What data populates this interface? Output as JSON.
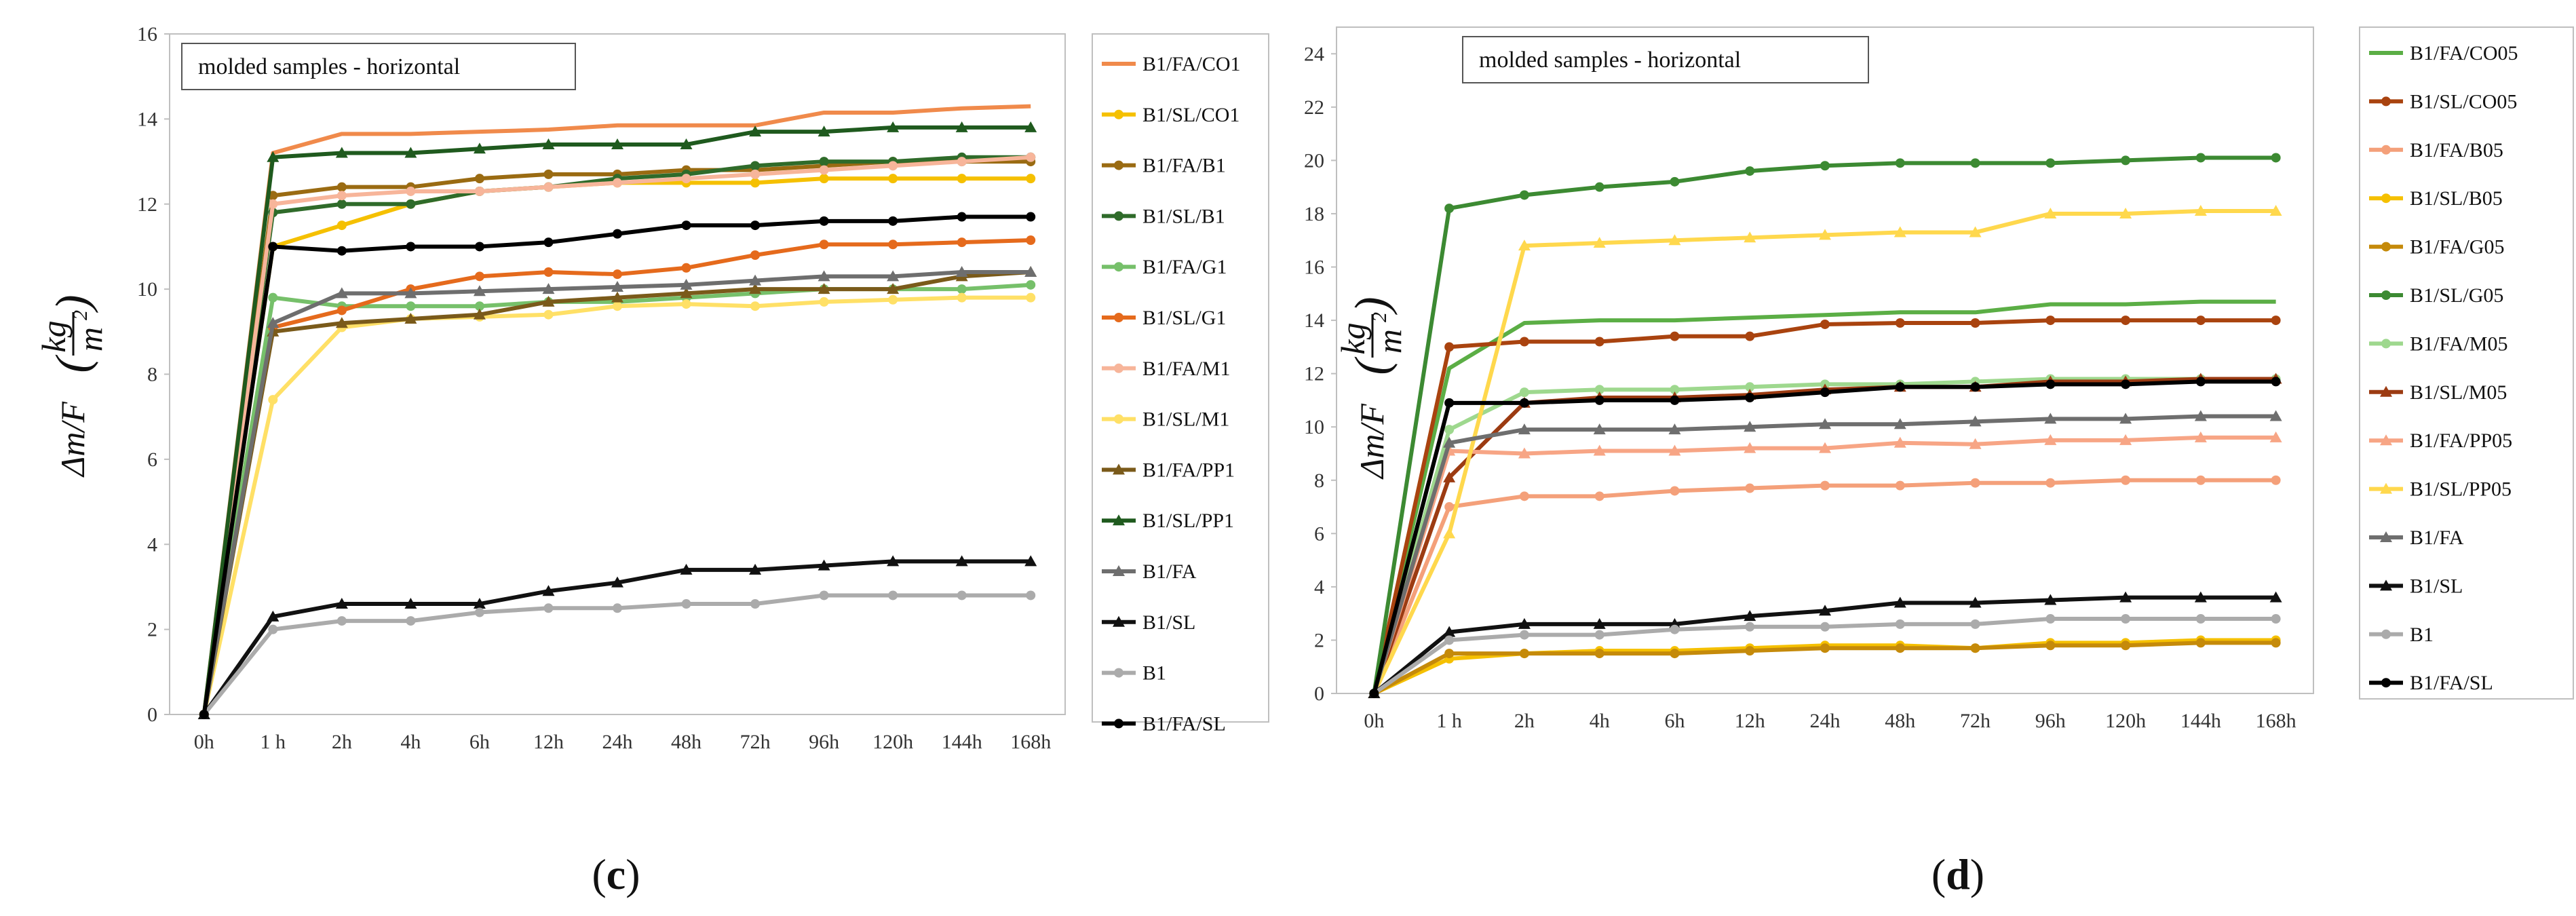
{
  "chart_data": [
    {
      "type": "line",
      "panel_label_pre": "(",
      "panel_label": "c",
      "panel_label_post": ")",
      "inset_label": "molded samples - horizontal",
      "ylabel": "Δm/F",
      "yunit_numerator": "kg",
      "yunit_denominator": "m",
      "yunit_exponent": "2",
      "ylim": [
        0,
        16
      ],
      "yticks": [
        0,
        2,
        4,
        6,
        8,
        10,
        12,
        14,
        16
      ],
      "categories": [
        "0h",
        "1 h",
        "2h",
        "4h",
        "6h",
        "12h",
        "24h",
        "48h",
        "72h",
        "96h",
        "120h",
        "144h",
        "168h"
      ],
      "series": [
        {
          "name": "B1/FA/CO1",
          "color": "#F08A4B",
          "marker": "line",
          "values": [
            0,
            13.2,
            13.65,
            13.65,
            13.7,
            13.75,
            13.85,
            13.85,
            13.85,
            14.15,
            14.15,
            14.25,
            14.3
          ]
        },
        {
          "name": "B1/SL/CO1",
          "color": "#F5C000",
          "marker": "circle",
          "values": [
            0,
            11.0,
            11.5,
            12.0,
            12.3,
            12.4,
            12.5,
            12.5,
            12.5,
            12.6,
            12.6,
            12.6,
            12.6
          ]
        },
        {
          "name": "B1/FA/B1",
          "color": "#9A6B12",
          "marker": "circle",
          "values": [
            0,
            12.2,
            12.4,
            12.4,
            12.6,
            12.7,
            12.7,
            12.8,
            12.8,
            12.9,
            13.0,
            13.0,
            13.0
          ]
        },
        {
          "name": "B1/SL/B1",
          "color": "#2F6B2A",
          "marker": "circle",
          "values": [
            0,
            11.8,
            12.0,
            12.0,
            12.3,
            12.4,
            12.6,
            12.7,
            12.9,
            13.0,
            13.0,
            13.1,
            13.1
          ]
        },
        {
          "name": "B1/FA/G1",
          "color": "#76C06A",
          "marker": "circle",
          "values": [
            0,
            9.8,
            9.6,
            9.6,
            9.6,
            9.7,
            9.7,
            9.8,
            9.9,
            10.0,
            10.0,
            10.0,
            10.1
          ]
        },
        {
          "name": "B1/SL/G1",
          "color": "#E56A1C",
          "marker": "circle",
          "values": [
            0,
            9.1,
            9.5,
            10.0,
            10.3,
            10.4,
            10.35,
            10.5,
            10.8,
            11.05,
            11.05,
            11.1,
            11.15
          ]
        },
        {
          "name": "B1/FA/M1",
          "color": "#F7B59A",
          "marker": "circle",
          "values": [
            0,
            12.0,
            12.2,
            12.3,
            12.3,
            12.4,
            12.5,
            12.6,
            12.7,
            12.8,
            12.9,
            13.0,
            13.1
          ]
        },
        {
          "name": "B1/SL/M1",
          "color": "#FFE066",
          "marker": "circle",
          "values": [
            0,
            7.4,
            9.1,
            9.3,
            9.35,
            9.4,
            9.6,
            9.65,
            9.6,
            9.7,
            9.75,
            9.8,
            9.8
          ]
        },
        {
          "name": "B1/FA/PP1",
          "color": "#7A5A1A",
          "marker": "triangle",
          "values": [
            0,
            9.0,
            9.2,
            9.3,
            9.4,
            9.7,
            9.8,
            9.9,
            10.0,
            10.0,
            10.0,
            10.3,
            10.4
          ]
        },
        {
          "name": "B1/SL/PP1",
          "color": "#1F5A1E",
          "marker": "triangle",
          "values": [
            0,
            13.1,
            13.2,
            13.2,
            13.3,
            13.4,
            13.4,
            13.4,
            13.7,
            13.7,
            13.8,
            13.8,
            13.8
          ]
        },
        {
          "name": "B1/FA",
          "color": "#6E6E6E",
          "marker": "triangle",
          "values": [
            0,
            9.2,
            9.9,
            9.9,
            9.95,
            10.0,
            10.05,
            10.1,
            10.2,
            10.3,
            10.3,
            10.4,
            10.4
          ]
        },
        {
          "name": "B1/SL",
          "color": "#111111",
          "marker": "triangle",
          "values": [
            0,
            2.3,
            2.6,
            2.6,
            2.6,
            2.9,
            3.1,
            3.4,
            3.4,
            3.5,
            3.6,
            3.6,
            3.6
          ]
        },
        {
          "name": "B1",
          "color": "#ABABAB",
          "marker": "circle",
          "values": [
            0,
            2.0,
            2.2,
            2.2,
            2.4,
            2.5,
            2.5,
            2.6,
            2.6,
            2.8,
            2.8,
            2.8,
            2.8
          ]
        },
        {
          "name": "B1/FA/SL",
          "color": "#000000",
          "marker": "circle",
          "values": [
            0,
            11.0,
            10.9,
            11.0,
            11.0,
            11.1,
            11.3,
            11.5,
            11.5,
            11.6,
            11.6,
            11.7,
            11.7
          ]
        }
      ]
    },
    {
      "type": "line",
      "panel_label_pre": "(",
      "panel_label": "d",
      "panel_label_post": ")",
      "inset_label": "molded samples - horizontal",
      "ylabel": "Δm/F",
      "yunit_numerator": "kg",
      "yunit_denominator": "m",
      "yunit_exponent": "2",
      "ylim": [
        0,
        25
      ],
      "yticks": [
        0,
        2,
        4,
        6,
        8,
        10,
        12,
        14,
        16,
        18,
        20,
        22,
        24
      ],
      "categories": [
        "0h",
        "1 h",
        "2h",
        "4h",
        "6h",
        "12h",
        "24h",
        "48h",
        "72h",
        "96h",
        "120h",
        "144h",
        "168h"
      ],
      "series": [
        {
          "name": "B1/FA/CO05",
          "color": "#5BAE45",
          "marker": "line",
          "values": [
            0,
            12.2,
            13.9,
            14.0,
            14.0,
            14.1,
            14.2,
            14.3,
            14.3,
            14.6,
            14.6,
            14.7,
            14.7
          ]
        },
        {
          "name": "B1/SL/CO05",
          "color": "#A9430F",
          "marker": "circle",
          "values": [
            0,
            13.0,
            13.2,
            13.2,
            13.4,
            13.4,
            13.85,
            13.9,
            13.9,
            14.0,
            14.0,
            14.0,
            14.0
          ]
        },
        {
          "name": "B1/FA/B05",
          "color": "#F4A07A",
          "marker": "circle",
          "values": [
            0,
            7.0,
            7.4,
            7.4,
            7.6,
            7.7,
            7.8,
            7.8,
            7.9,
            7.9,
            8.0,
            8.0,
            8.0
          ]
        },
        {
          "name": "B1/SL/B05",
          "color": "#F5C000",
          "marker": "circle",
          "values": [
            0,
            1.3,
            1.5,
            1.6,
            1.6,
            1.7,
            1.8,
            1.8,
            1.7,
            1.9,
            1.9,
            2.0,
            2.0
          ]
        },
        {
          "name": "B1/FA/G05",
          "color": "#C58A0A",
          "marker": "circle",
          "values": [
            0,
            1.5,
            1.5,
            1.5,
            1.5,
            1.6,
            1.7,
            1.7,
            1.7,
            1.8,
            1.8,
            1.9,
            1.9
          ]
        },
        {
          "name": "B1/SL/G05",
          "color": "#3C8A32",
          "marker": "circle",
          "values": [
            0,
            18.2,
            18.7,
            19.0,
            19.2,
            19.6,
            19.8,
            19.9,
            19.9,
            19.9,
            20.0,
            20.1,
            20.1
          ]
        },
        {
          "name": "B1/FA/M05",
          "color": "#9ED88E",
          "marker": "circle",
          "values": [
            0,
            9.9,
            11.3,
            11.4,
            11.4,
            11.5,
            11.6,
            11.6,
            11.7,
            11.8,
            11.8,
            11.8,
            11.8
          ]
        },
        {
          "name": "B1/SL/M05",
          "color": "#9C3B12",
          "marker": "triangle",
          "values": [
            0,
            8.1,
            10.9,
            11.1,
            11.1,
            11.2,
            11.4,
            11.5,
            11.5,
            11.7,
            11.7,
            11.8,
            11.8
          ]
        },
        {
          "name": "B1/FA/PP05",
          "color": "#F7A585",
          "marker": "triangle",
          "values": [
            0,
            9.1,
            9.0,
            9.1,
            9.1,
            9.2,
            9.2,
            9.4,
            9.35,
            9.5,
            9.5,
            9.6,
            9.6
          ]
        },
        {
          "name": "B1/SL/PP05",
          "color": "#FFD84D",
          "marker": "triangle",
          "values": [
            0,
            6.0,
            16.8,
            16.9,
            17.0,
            17.1,
            17.2,
            17.3,
            17.3,
            18.0,
            18.0,
            18.1,
            18.1
          ]
        },
        {
          "name": "B1/FA",
          "color": "#6E6E6E",
          "marker": "triangle",
          "values": [
            0,
            9.4,
            9.9,
            9.9,
            9.9,
            10.0,
            10.1,
            10.1,
            10.2,
            10.3,
            10.3,
            10.4,
            10.4
          ]
        },
        {
          "name": "B1/SL",
          "color": "#111111",
          "marker": "triangle",
          "values": [
            0,
            2.3,
            2.6,
            2.6,
            2.6,
            2.9,
            3.1,
            3.4,
            3.4,
            3.5,
            3.6,
            3.6,
            3.6
          ]
        },
        {
          "name": "B1",
          "color": "#ABABAB",
          "marker": "circle",
          "values": [
            0,
            2.0,
            2.2,
            2.2,
            2.4,
            2.5,
            2.5,
            2.6,
            2.6,
            2.8,
            2.8,
            2.8,
            2.8
          ]
        },
        {
          "name": "B1/FA/SL",
          "color": "#000000",
          "marker": "circle",
          "values": [
            0,
            10.9,
            10.9,
            11.0,
            11.0,
            11.1,
            11.3,
            11.5,
            11.5,
            11.6,
            11.6,
            11.7,
            11.7
          ]
        }
      ]
    }
  ]
}
